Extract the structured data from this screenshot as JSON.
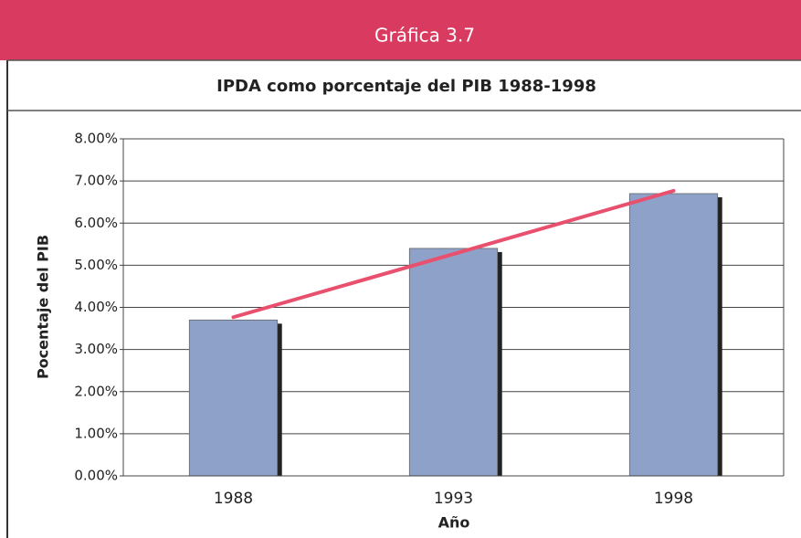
{
  "header": "Gráfica 3.7",
  "chart_data": {
    "type": "bar",
    "title": "IPDA como porcentaje del PIB 1988-1998",
    "x_label": "Año",
    "y_label": "Pocentaje del PIB",
    "categories": [
      "1988",
      "1993",
      "1998"
    ],
    "values": [
      3.7,
      5.4,
      6.7
    ],
    "color": "#8ea2c9",
    "trendline": {
      "color": "#e8506e"
    },
    "ylim": [
      0,
      8
    ],
    "yticks": [
      {
        "value": 0,
        "label": "0.00%"
      },
      {
        "value": 1,
        "label": "1.00%"
      },
      {
        "value": 2,
        "label": "2.00%"
      },
      {
        "value": 3,
        "label": "3.00%"
      },
      {
        "value": 4,
        "label": "4.00%"
      },
      {
        "value": 5,
        "label": "5.00%"
      },
      {
        "value": 6,
        "label": "6.00%"
      },
      {
        "value": 7,
        "label": "7.00%"
      },
      {
        "value": 8,
        "label": "8.00%"
      }
    ],
    "grid": true
  }
}
